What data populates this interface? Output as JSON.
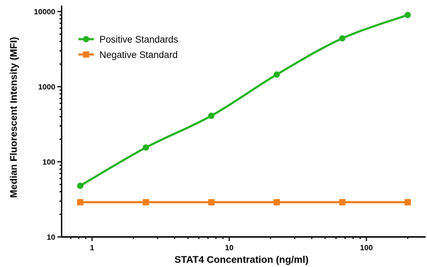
{
  "chart_data": {
    "type": "line",
    "xlabel": "STAT4 Concentration (ng/ml)",
    "ylabel": "Median Fluorescent Intensity (MFI)",
    "xscale": "log",
    "yscale": "log",
    "xlim": [
      0.6,
      270
    ],
    "ylim": [
      10,
      12000
    ],
    "x_ticks": [
      1,
      10,
      100
    ],
    "x_tick_labels": [
      "1",
      "10",
      "100"
    ],
    "y_ticks": [
      10,
      100,
      1000,
      10000
    ],
    "y_tick_labels": [
      "10",
      "100",
      "1000",
      "10000"
    ],
    "grid": false,
    "legend_position": "top-left",
    "series": [
      {
        "name": "Positive Standards",
        "color": "#22b21f",
        "marker": "circle",
        "x": [
          0.82,
          2.47,
          7.4,
          22.2,
          66.7,
          200
        ],
        "y": [
          48,
          155,
          410,
          1450,
          4400,
          9000
        ]
      },
      {
        "name": "Negative Standard",
        "color": "#f07e1d",
        "marker": "square",
        "x": [
          0.82,
          2.47,
          7.4,
          22.2,
          66.7,
          200
        ],
        "y": [
          29,
          29,
          29,
          29,
          29,
          29
        ]
      }
    ]
  }
}
